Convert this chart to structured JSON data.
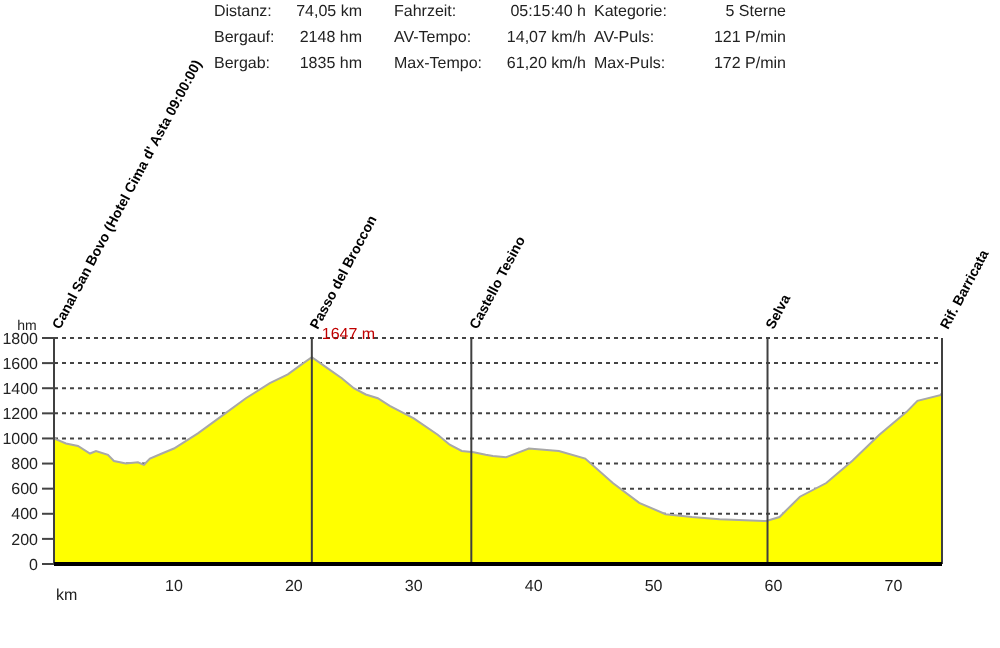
{
  "chart_data": {
    "type": "area",
    "xlabel": "km",
    "ylabel": "hm",
    "x": [
      0,
      1,
      2,
      3,
      3.5,
      4.5,
      5,
      6,
      7,
      7.5,
      8,
      9,
      10,
      12,
      14,
      16,
      18,
      19.5,
      20.5,
      21.5,
      22.5,
      24,
      25,
      26,
      27,
      28,
      30,
      32,
      33,
      34,
      35,
      36,
      36.6,
      37.7,
      39.6,
      42.1,
      44.3,
      46.6,
      48.8,
      51,
      53.2,
      55.5,
      59.4,
      60.5,
      62.2,
      64.4,
      66.6,
      68.8,
      71.1,
      72,
      73.9,
      74.05
    ],
    "series": [
      {
        "color": "#ffff00",
        "values": [
          1000,
          960,
          940,
          880,
          900,
          870,
          820,
          800,
          810,
          790,
          840,
          880,
          920,
          1040,
          1180,
          1320,
          1440,
          1510,
          1580,
          1647,
          1580,
          1480,
          1400,
          1350,
          1320,
          1260,
          1160,
          1030,
          950,
          900,
          890,
          870,
          860,
          850,
          920,
          900,
          840,
          645,
          487,
          397,
          374,
          357,
          342,
          374,
          536,
          645,
          825,
          1027,
          1212,
          1300,
          1345,
          1360
        ]
      }
    ],
    "xlim": [
      0,
      74.05
    ],
    "xticks": [
      10,
      20,
      30,
      40,
      50,
      60,
      70
    ],
    "ylim": [
      0,
      1800
    ],
    "yticks": [
      0,
      200,
      400,
      600,
      800,
      1000,
      1200,
      1400,
      1600,
      1800
    ],
    "grid": "y",
    "legend": false,
    "ref_lines": [
      {
        "axis": "x",
        "value": 0,
        "label": "Canal San Bovo (Hotel Cima d' Asta 09:00:00)",
        "color": "#404040"
      },
      {
        "axis": "x",
        "value": 21.5,
        "label": "Passo del Broccon",
        "color": "#404040"
      },
      {
        "axis": "x",
        "value": 34.8,
        "label": "Castello Tesino",
        "color": "#404040"
      },
      {
        "axis": "x",
        "value": 59.5,
        "label": "Selva",
        "color": "#404040"
      },
      {
        "axis": "x",
        "value": 74.05,
        "label": "Rif. Barricata",
        "color": "#404040"
      }
    ],
    "annotations": [
      {
        "text": "1647 m",
        "x": 21.5,
        "y": 1647
      },
      "Distanz:",
      "74,05 km",
      "Fahrzeit:",
      "05:15:40 h",
      "Kategorie:",
      "5 Sterne",
      "Bergauf:",
      "2148 hm",
      "AV-Tempo:",
      "14,07 km/h",
      "AV-Puls:",
      "121 P/min",
      "Bergab:",
      "1835 hm",
      "Max-Tempo:",
      "61,20 km/h",
      "Max-Puls:",
      "172 P/min"
    ]
  }
}
